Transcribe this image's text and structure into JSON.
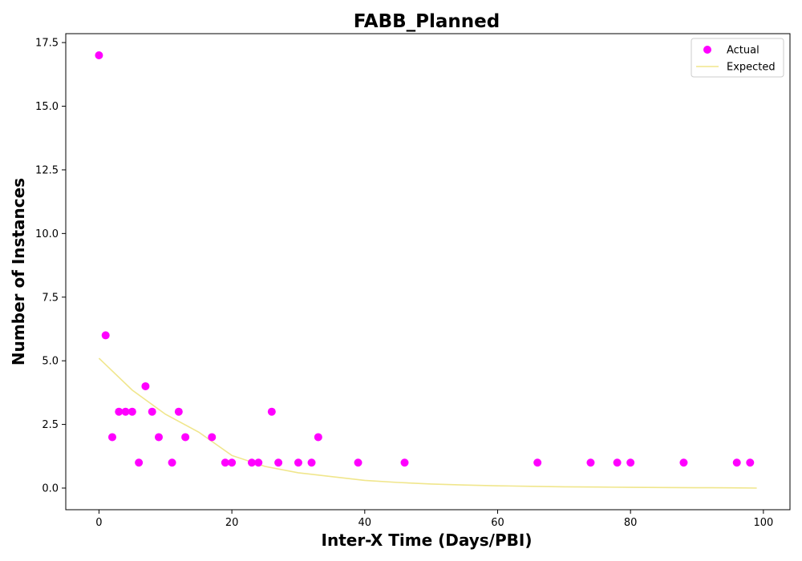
{
  "chart_data": {
    "type": "scatter",
    "title": "FABB_Planned",
    "xlabel": "Inter-X Time (Days/PBI)",
    "ylabel": "Number of Instances",
    "xlim": [
      -5,
      104
    ],
    "ylim": [
      -0.85,
      17.85
    ],
    "xticks": [
      0,
      20,
      40,
      60,
      80,
      100
    ],
    "xtick_labels": [
      "0",
      "20",
      "40",
      "60",
      "80",
      "100"
    ],
    "yticks": [
      0.0,
      2.5,
      5.0,
      7.5,
      10.0,
      12.5,
      15.0,
      17.5
    ],
    "ytick_labels": [
      "0.0",
      "2.5",
      "5.0",
      "7.5",
      "10.0",
      "12.5",
      "15.0",
      "17.5"
    ],
    "grid": false,
    "legend_position": "top-right",
    "series": [
      {
        "name": "Actual",
        "kind": "scatter",
        "color": "#ff00ff",
        "points": [
          [
            0,
            17
          ],
          [
            1,
            6
          ],
          [
            2,
            2
          ],
          [
            3,
            3
          ],
          [
            4,
            3
          ],
          [
            5,
            3
          ],
          [
            6,
            1
          ],
          [
            7,
            4
          ],
          [
            8,
            3
          ],
          [
            9,
            2
          ],
          [
            11,
            1
          ],
          [
            12,
            3
          ],
          [
            13,
            2
          ],
          [
            17,
            2
          ],
          [
            19,
            1
          ],
          [
            20,
            1
          ],
          [
            23,
            1
          ],
          [
            24,
            1
          ],
          [
            26,
            3
          ],
          [
            27,
            1
          ],
          [
            30,
            1
          ],
          [
            32,
            1
          ],
          [
            33,
            2
          ],
          [
            39,
            1
          ],
          [
            46,
            1
          ],
          [
            66,
            1
          ],
          [
            74,
            1
          ],
          [
            78,
            1
          ],
          [
            80,
            1
          ],
          [
            88,
            1
          ],
          [
            96,
            1
          ],
          [
            98,
            1
          ]
        ]
      },
      {
        "name": "Expected",
        "kind": "line",
        "color": "#f0e68c",
        "points": [
          [
            0,
            5.1
          ],
          [
            5,
            3.85
          ],
          [
            10,
            2.9
          ],
          [
            15,
            2.2
          ],
          [
            20,
            1.28
          ],
          [
            25,
            0.85
          ],
          [
            30,
            0.6
          ],
          [
            35,
            0.45
          ],
          [
            40,
            0.3
          ],
          [
            45,
            0.22
          ],
          [
            50,
            0.16
          ],
          [
            55,
            0.12
          ],
          [
            60,
            0.09
          ],
          [
            65,
            0.07
          ],
          [
            70,
            0.05
          ],
          [
            75,
            0.04
          ],
          [
            80,
            0.03
          ],
          [
            85,
            0.02
          ],
          [
            90,
            0.015
          ],
          [
            95,
            0.01
          ],
          [
            99,
            0.0
          ]
        ]
      }
    ]
  }
}
